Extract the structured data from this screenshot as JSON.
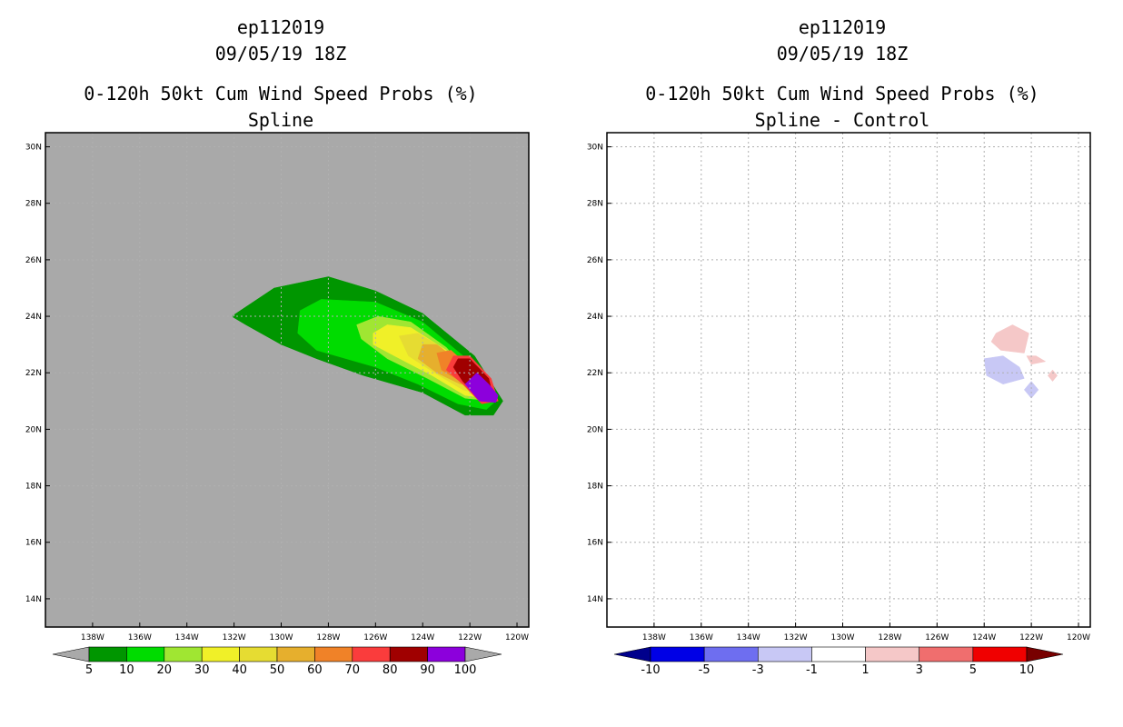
{
  "chart_data": [
    {
      "type": "filled-contour",
      "title_lines": [
        "ep112019",
        "09/05/19 18Z",
        "0-120h 50kt Cum Wind Speed Probs (%)",
        "Spline"
      ],
      "x_ticks": [
        "138W",
        "136W",
        "134W",
        "132W",
        "130W",
        "128W",
        "126W",
        "124W",
        "122W",
        "120W"
      ],
      "y_ticks": [
        "30N",
        "28N",
        "26N",
        "24N",
        "22N",
        "20N",
        "18N",
        "16N",
        "14N"
      ],
      "xlim_deg_east": [
        -140,
        -119.5
      ],
      "ylim_deg_north": [
        13,
        30.5
      ],
      "grid": true,
      "background": "#a9a9a9",
      "colorbar": {
        "labels": [
          "5",
          "10",
          "20",
          "30",
          "40",
          "50",
          "60",
          "70",
          "80",
          "90",
          "100"
        ],
        "colors": [
          "#009600",
          "#00dc00",
          "#a0e632",
          "#f0f028",
          "#e6dc32",
          "#e6af2d",
          "#f08228",
          "#fa3c3c",
          "#a00000",
          "#8c00dc"
        ],
        "end_colors": [
          "#a9a9a9",
          "#a9a9a9"
        ]
      },
      "contours": [
        {
          "level": 5,
          "color": "#009600",
          "points": [
            [
              -132.1,
              24.0
            ],
            [
              -130.3,
              25.0
            ],
            [
              -128.0,
              25.4
            ],
            [
              -126.0,
              24.9
            ],
            [
              -124.0,
              24.1
            ],
            [
              -121.8,
              22.6
            ],
            [
              -120.6,
              21.0
            ],
            [
              -121.0,
              20.5
            ],
            [
              -122.2,
              20.5
            ],
            [
              -124.0,
              21.3
            ],
            [
              -126.5,
              21.9
            ],
            [
              -128.5,
              22.5
            ],
            [
              -130.0,
              23.0
            ],
            [
              -131.5,
              23.7
            ]
          ]
        },
        {
          "level": 10,
          "color": "#00dc00",
          "points": [
            [
              -129.2,
              24.2
            ],
            [
              -128.3,
              24.6
            ],
            [
              -126.0,
              24.5
            ],
            [
              -124.0,
              23.8
            ],
            [
              -122.0,
              22.4
            ],
            [
              -120.9,
              21.0
            ],
            [
              -121.3,
              20.7
            ],
            [
              -122.5,
              20.9
            ],
            [
              -124.2,
              21.6
            ],
            [
              -126.0,
              22.2
            ],
            [
              -128.5,
              22.8
            ],
            [
              -129.3,
              23.4
            ]
          ]
        },
        {
          "level": 20,
          "color": "#a0e632",
          "points": [
            [
              -126.8,
              23.7
            ],
            [
              -125.9,
              24.0
            ],
            [
              -124.5,
              23.8
            ],
            [
              -123.0,
              22.9
            ],
            [
              -121.3,
              21.3
            ],
            [
              -121.0,
              21.0
            ],
            [
              -122.2,
              21.1
            ],
            [
              -123.8,
              21.8
            ],
            [
              -125.5,
              22.5
            ],
            [
              -126.6,
              23.2
            ]
          ]
        },
        {
          "level": 30,
          "color": "#f0f028",
          "points": [
            [
              -126.1,
              23.4
            ],
            [
              -125.5,
              23.7
            ],
            [
              -124.5,
              23.6
            ],
            [
              -123.0,
              22.8
            ],
            [
              -121.5,
              21.4
            ],
            [
              -121.2,
              21.1
            ],
            [
              -122.2,
              21.2
            ],
            [
              -123.6,
              21.9
            ],
            [
              -125.2,
              22.6
            ],
            [
              -126.1,
              23.0
            ]
          ]
        },
        {
          "level": 40,
          "color": "#e6dc32",
          "points": [
            [
              -125.0,
              23.3
            ],
            [
              -124.2,
              23.4
            ],
            [
              -123.2,
              22.9
            ],
            [
              -121.8,
              21.6
            ],
            [
              -121.4,
              21.2
            ],
            [
              -122.3,
              21.4
            ],
            [
              -123.5,
              22.0
            ],
            [
              -124.6,
              22.6
            ]
          ]
        },
        {
          "level": 50,
          "color": "#e6af2d",
          "points": [
            [
              -124.0,
              23.0
            ],
            [
              -123.4,
              23.0
            ],
            [
              -122.3,
              22.3
            ],
            [
              -121.6,
              21.5
            ],
            [
              -122.4,
              21.6
            ],
            [
              -123.4,
              22.0
            ],
            [
              -124.2,
              22.5
            ]
          ]
        },
        {
          "level": 60,
          "color": "#f08228",
          "points": [
            [
              -123.4,
              22.7
            ],
            [
              -122.8,
              22.8
            ],
            [
              -122.0,
              22.2
            ],
            [
              -121.5,
              21.4
            ],
            [
              -122.4,
              21.7
            ],
            [
              -123.2,
              22.1
            ]
          ]
        },
        {
          "level": 70,
          "color": "#fa3c3c",
          "points": [
            [
              -122.7,
              22.6
            ],
            [
              -122.0,
              22.6
            ],
            [
              -121.1,
              21.8
            ],
            [
              -120.8,
              21.0
            ],
            [
              -121.5,
              20.9
            ],
            [
              -122.3,
              21.6
            ],
            [
              -123.0,
              22.1
            ]
          ]
        },
        {
          "level": 80,
          "color": "#a00000",
          "points": [
            [
              -122.5,
              22.5
            ],
            [
              -122.0,
              22.5
            ],
            [
              -121.2,
              21.8
            ],
            [
              -121.0,
              21.1
            ],
            [
              -121.5,
              21.0
            ],
            [
              -122.3,
              21.7
            ],
            [
              -122.7,
              22.2
            ]
          ]
        },
        {
          "level": 90,
          "color": "#8c00dc",
          "points": [
            [
              -121.7,
              22.0
            ],
            [
              -121.2,
              21.6
            ],
            [
              -120.8,
              21.2
            ],
            [
              -120.9,
              20.95
            ],
            [
              -121.6,
              21.0
            ],
            [
              -122.2,
              21.6
            ]
          ]
        }
      ]
    },
    {
      "type": "filled-contour",
      "title_lines": [
        "ep112019",
        "09/05/19 18Z",
        "0-120h 50kt Cum Wind Speed Probs (%)",
        "Spline - Control"
      ],
      "x_ticks": [
        "138W",
        "136W",
        "134W",
        "132W",
        "130W",
        "128W",
        "126W",
        "124W",
        "122W",
        "120W"
      ],
      "y_ticks": [
        "30N",
        "28N",
        "26N",
        "24N",
        "22N",
        "20N",
        "18N",
        "16N",
        "14N"
      ],
      "xlim_deg_east": [
        -140,
        -119.5
      ],
      "ylim_deg_north": [
        13,
        30.5
      ],
      "grid": true,
      "background": "#ffffff",
      "colorbar": {
        "labels": [
          "-10",
          "-5",
          "-3",
          "-1",
          "1",
          "3",
          "5",
          "10"
        ],
        "colors": [
          "#0000e6",
          "#6e6ef0",
          "#c8c8f5",
          "#ffffff",
          "#f5c8c8",
          "#f06e6e",
          "#f00000"
        ],
        "end_colors": [
          "#00008c",
          "#780000"
        ]
      },
      "contours": [
        {
          "level": 1,
          "color": "#f5c8c8",
          "points": [
            [
              -123.5,
              23.4
            ],
            [
              -122.8,
              23.7
            ],
            [
              -122.1,
              23.4
            ],
            [
              -122.3,
              22.7
            ],
            [
              -123.3,
              22.8
            ],
            [
              -123.7,
              23.1
            ]
          ]
        },
        {
          "level": 1,
          "color": "#f5c8c8",
          "points": [
            [
              -122.2,
              22.6
            ],
            [
              -121.8,
              22.6
            ],
            [
              -121.4,
              22.4
            ],
            [
              -122.0,
              22.3
            ]
          ]
        },
        {
          "level": 1,
          "color": "#f5c8c8",
          "points": [
            [
              -121.1,
              22.1
            ],
            [
              -120.9,
              21.9
            ],
            [
              -121.1,
              21.7
            ],
            [
              -121.3,
              21.9
            ]
          ]
        },
        {
          "level": -1,
          "color": "#c8c8f5",
          "points": [
            [
              -124.0,
              22.5
            ],
            [
              -123.2,
              22.6
            ],
            [
              -122.5,
              22.2
            ],
            [
              -122.3,
              21.8
            ],
            [
              -123.2,
              21.6
            ],
            [
              -123.9,
              21.9
            ]
          ]
        },
        {
          "level": -1,
          "color": "#c8c8f5",
          "points": [
            [
              -122.0,
              21.7
            ],
            [
              -121.7,
              21.4
            ],
            [
              -122.0,
              21.1
            ],
            [
              -122.3,
              21.4
            ]
          ]
        }
      ]
    }
  ]
}
